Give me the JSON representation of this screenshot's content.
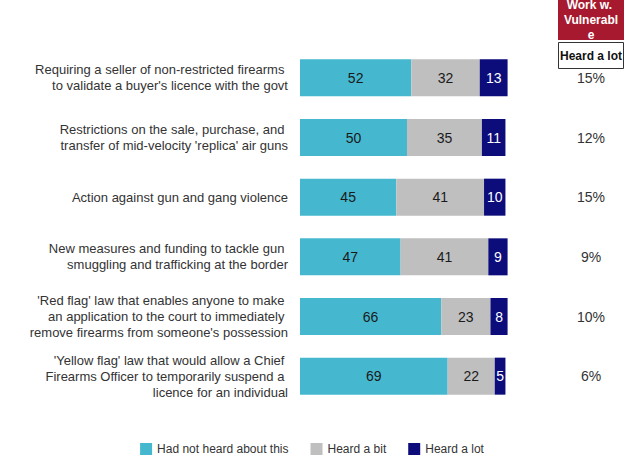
{
  "chart_data": {
    "type": "bar",
    "orientation": "horizontal",
    "stacked": true,
    "data_labels": true,
    "tick_labels": false,
    "grid": false,
    "legend": "bottom",
    "categories": [
      "Requiring a seller of non-restricted firearms to validate a buyer's licence with the govt",
      "Restrictions on the sale, purchase, and transfer of mid-velocity 'replica' air guns",
      "Action against gun and gang violence",
      "New measures and funding to tackle gun smuggling and trafficking at the border",
      "'Red flag' law that enables anyone to make an application to the court to immediately remove firearms from someone's possession",
      "'Yellow flag' law that would allow a Chief Firearms Officer to temporarily suspend a licence for an individual"
    ],
    "xlim": [
      0,
      100
    ],
    "series": [
      {
        "name": "Had not heard about this",
        "color": "#45B8CF",
        "values": [
          52,
          50,
          45,
          47,
          66,
          69
        ]
      },
      {
        "name": "Heard a bit",
        "color": "#BFBFBF",
        "values": [
          32,
          35,
          41,
          41,
          23,
          22
        ]
      },
      {
        "name": "Heard a lot",
        "color": "#0C0C7A",
        "values": [
          13,
          11,
          10,
          9,
          8,
          5
        ]
      }
    ],
    "side_column": {
      "title": "Work w. Vulnerable",
      "subtitle": "Heard a lot",
      "values": [
        15,
        12,
        15,
        9,
        10,
        6
      ],
      "value_labels": [
        "15%",
        "12%",
        "15%",
        "9%",
        "10%",
        "6%"
      ]
    }
  }
}
